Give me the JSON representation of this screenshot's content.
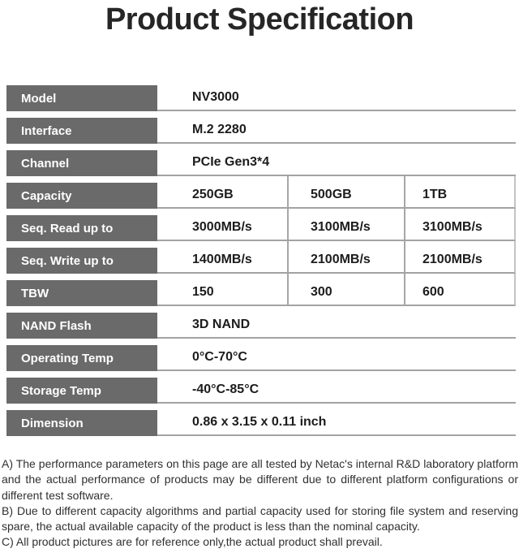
{
  "title": "Product Specification",
  "colors": {
    "label_background": "#6a6a6b",
    "label_text": "#ffffff",
    "grid_border": "#a3a3a3",
    "value_text": "#1c1c1c",
    "note_text": "#303030"
  },
  "table": {
    "rows": [
      {
        "label": "Model",
        "values": [
          "NV3000"
        ]
      },
      {
        "label": "Interface",
        "values": [
          "M.2 2280"
        ]
      },
      {
        "label": "Channel",
        "values": [
          "PCIe Gen3*4"
        ]
      },
      {
        "label": "Capacity",
        "values": [
          "250GB",
          "500GB",
          "1TB"
        ]
      },
      {
        "label": "Seq. Read up to",
        "values": [
          "3000MB/s",
          "3100MB/s",
          "3100MB/s"
        ]
      },
      {
        "label": "Seq. Write up to",
        "values": [
          "1400MB/s",
          "2100MB/s",
          "2100MB/s"
        ]
      },
      {
        "label": "TBW",
        "values": [
          "150",
          "300",
          "600"
        ]
      },
      {
        "label": "NAND Flash",
        "values": [
          "3D NAND"
        ]
      },
      {
        "label": "Operating Temp",
        "values": [
          "0°C-70°C"
        ]
      },
      {
        "label": "Storage Temp",
        "values": [
          "-40°C-85°C"
        ]
      },
      {
        "label": "Dimension",
        "values": [
          "0.86 x 3.15 x 0.11 inch"
        ]
      }
    ]
  },
  "notes": [
    "A) The performance parameters on this page are all tested by Netac's internal R&D laboratory platform and the actual performance of products may be different due to different platform configurations or different test software.",
    "B) Due to different capacity algorithms and partial capacity used for storing file system and reserving spare, the actual available capacity of the product is less than the nominal capacity.",
    "C) All product pictures are for reference only,the actual product shall prevail."
  ]
}
